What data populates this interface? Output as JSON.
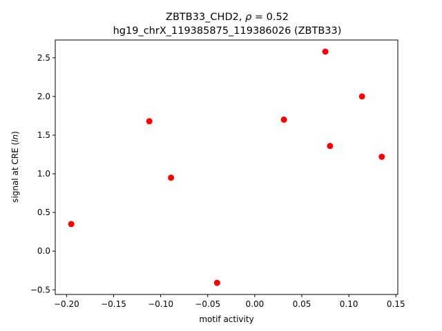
{
  "chart_data": {
    "type": "scatter",
    "title_line1_prefix": "ZBTB33_CHD2, ",
    "title_line1_rho": "ρ",
    "title_line1_suffix": " = 0.52",
    "title_line2": "hg19_chrX_119385875_119386026 (ZBTB33)",
    "xlabel": "motif activity",
    "ylabel_prefix": "signal at CRE (",
    "ylabel_italic": "ln",
    "ylabel_suffix": ")",
    "xlim": [
      -0.212,
      0.152
    ],
    "ylim": [
      -0.56,
      2.73
    ],
    "xticks": [
      -0.2,
      -0.15,
      -0.1,
      -0.05,
      0.0,
      0.05,
      0.1,
      0.15
    ],
    "xtick_labels": [
      "−0.20",
      "−0.15",
      "−0.10",
      "−0.05",
      "0.00",
      "0.05",
      "0.10",
      "0.15"
    ],
    "yticks": [
      -0.5,
      0.0,
      0.5,
      1.0,
      1.5,
      2.0,
      2.5
    ],
    "ytick_labels": [
      "−0.5",
      "0.0",
      "0.5",
      "1.0",
      "1.5",
      "2.0",
      "2.5"
    ],
    "grid": false,
    "marker_color": "#ff0000",
    "points": [
      {
        "x": -0.195,
        "y": 0.35
      },
      {
        "x": -0.112,
        "y": 1.68
      },
      {
        "x": -0.089,
        "y": 0.95
      },
      {
        "x": -0.04,
        "y": -0.41
      },
      {
        "x": 0.031,
        "y": 1.7
      },
      {
        "x": 0.075,
        "y": 2.58
      },
      {
        "x": 0.08,
        "y": 1.36
      },
      {
        "x": 0.114,
        "y": 2.0
      },
      {
        "x": 0.135,
        "y": 1.22
      }
    ]
  }
}
